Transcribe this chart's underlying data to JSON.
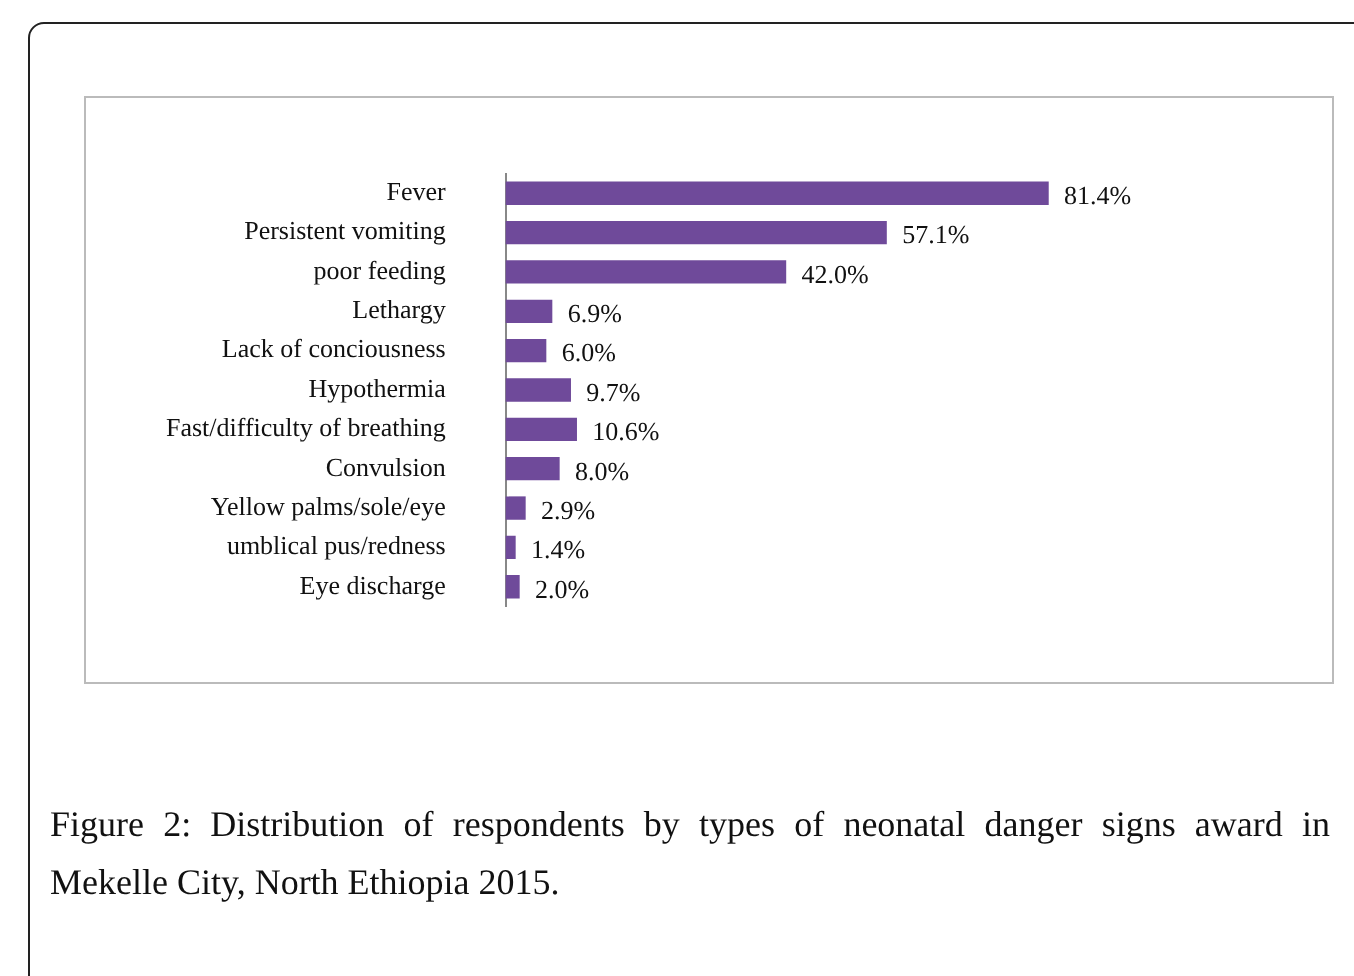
{
  "chart_data": {
    "type": "bar",
    "orientation": "horizontal",
    "categories": [
      "Fever",
      "Persistent vomiting",
      "poor feeding",
      "Lethargy",
      "Lack of conciousness",
      "Hypothermia",
      "Fast/difficulty of breathing",
      "Convulsion",
      "Yellow palms/sole/eye",
      "umblical pus/redness",
      "Eye discharge"
    ],
    "values": [
      81.4,
      57.1,
      42.0,
      6.9,
      6.0,
      9.7,
      10.6,
      8.0,
      2.9,
      1.4,
      2.0
    ],
    "value_labels": [
      "81.4%",
      "57.1%",
      "42.0%",
      "6.9%",
      "6.0%",
      "9.7%",
      "10.6%",
      "8.0%",
      "2.9%",
      "1.4%",
      "2.0%"
    ],
    "color": "#6f4a9a",
    "legend": false,
    "annotations": [
      "Figure 2: Distribution of respondents by types of neonatal danger signs award in Mekelle City, North Ethiopia 2015."
    ]
  }
}
